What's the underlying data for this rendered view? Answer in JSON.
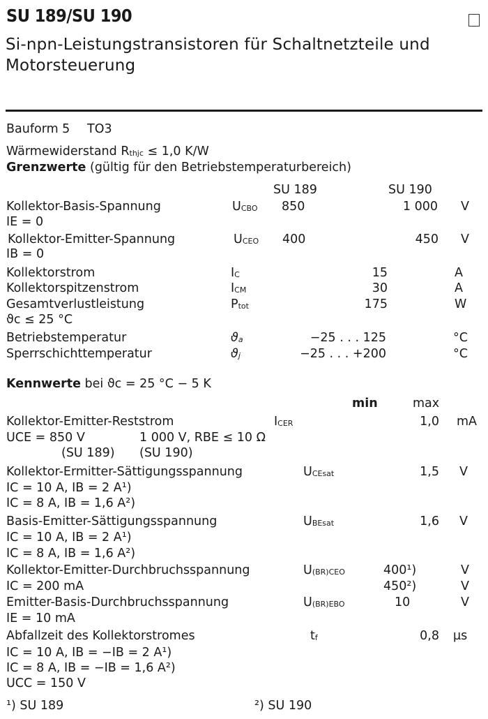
{
  "header": {
    "title": "SU 189/SU 190",
    "subtitle_line1": "Si-npn-Leistungstransistoren für Schaltnetzteile und",
    "subtitle_line2": "Motorsteuerung",
    "checkbox_icon": "empty-square-icon"
  },
  "package": {
    "label": "Bauform 5",
    "value": "TO3"
  },
  "thermal": {
    "label": "Wärmewiderstand",
    "sym": "R",
    "sub": "thjc",
    "value": "≤ 1,0 K/W"
  },
  "limits": {
    "heading_bold": "Grenzwerte",
    "heading_rest": "(gültig für den Betriebstemperaturbereich)",
    "col_su189": "SU 189",
    "col_su190": "SU 190",
    "rows": [
      {
        "name": "Kollektor-Basis-Spannung",
        "sym": "U",
        "sub": "CBO",
        "v189": "850",
        "v190": "1 000",
        "unit": "V",
        "cond": "IE = 0"
      },
      {
        "name": "Kollektor-Emitter-Spannung",
        "sym": "U",
        "sub": "CEO",
        "v189": "400",
        "v190": "450",
        "unit": "V",
        "cond": "IB = 0"
      },
      {
        "name": "Kollektorstrom",
        "sym": "I",
        "sub": "C",
        "value": "15",
        "unit": "A"
      },
      {
        "name": "Kollektorspitzenstrom",
        "sym": "I",
        "sub": "CM",
        "value": "30",
        "unit": "A"
      },
      {
        "name": "Gesamtverlustleistung",
        "sym": "P",
        "sub": "tot",
        "value": "175",
        "unit": "W",
        "cond": "ϑc ≤ 25 °C"
      },
      {
        "name": "Betriebstemperatur",
        "sym": "ϑ",
        "sub": "a",
        "value": "−25 . . . 125",
        "unit": "°C"
      },
      {
        "name": "Sperrschichttemperatur",
        "sym": "ϑ",
        "sub": "j",
        "value": "−25 . . . +200",
        "unit": "°C"
      }
    ]
  },
  "characteristics": {
    "heading_bold": "Kennwerte",
    "heading_rest": "bei ϑc = 25 °C − 5 K",
    "col_min": "min",
    "col_max": "max",
    "rows": [
      {
        "name": "Kollektor-Emitter-Reststrom",
        "sym": "I",
        "sub": "CER",
        "max": "1,0",
        "unit": "mA",
        "cond": [
          "UCE = 850 V",
          "1 000 V, RBE ≤ 10 Ω",
          "(SU 189)",
          "(SU 190)"
        ]
      },
      {
        "name": "Kollektor-Ermitter-Sättigungsspannung",
        "sym": "U",
        "sub": "CEsat",
        "max": "1,5",
        "unit": "V",
        "cond": [
          "IC = 10 A, IB = 2 A¹)",
          "IC =  8 A, IB = 1,6 A²)"
        ]
      },
      {
        "name": "Basis-Emitter-Sättigungsspannung",
        "sym": "U",
        "sub": "BEsat",
        "max": "1,6",
        "unit": "V",
        "cond": [
          "IC = 10 A, IB = 2 A¹)",
          "IC =  8 A, IB = 1,6 A²)"
        ]
      },
      {
        "name": "Kollektor-Emitter-Durchbruchsspannung",
        "sym": "U",
        "sub": "(BR)CEO",
        "min1": "400¹)",
        "min2": "450²)",
        "unit": "V",
        "cond": [
          "IC = 200 mA"
        ]
      },
      {
        "name": "Emitter-Basis-Durchbruchsspannung",
        "sym": "U",
        "sub": "(BR)EBO",
        "min": "10",
        "unit": "V",
        "cond": [
          "IE = 10 mA"
        ]
      },
      {
        "name": "Abfallzeit des Kollektorstromes",
        "sym": "t",
        "sub": "f",
        "max": "0,8",
        "unit": "µs",
        "cond": [
          "IC = 10 A, IB = −IB = 2 A¹)",
          "IC =  8 A, IB = −IB = 1,6 A²)",
          "UCC = 150 V"
        ]
      }
    ]
  },
  "footnotes": [
    "¹) SU 189",
    "²) SU 190"
  ]
}
